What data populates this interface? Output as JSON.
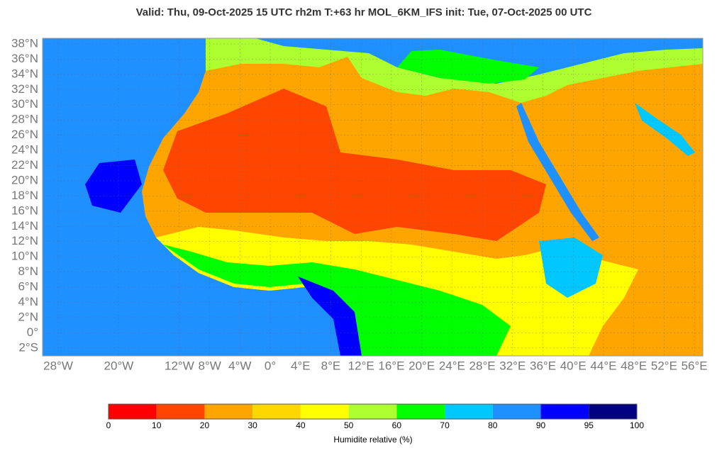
{
  "header": {
    "title": "Valid: Thu, 09-Oct-2025   15 UTC   rh2m   T:+63 hr   MOL_6KM_IFS      init: Tue, 07-Oct-2025   00 UTC"
  },
  "map": {
    "lat_ticks": [
      {
        "value": 38,
        "label": "38°N"
      },
      {
        "value": 36,
        "label": "36°N"
      },
      {
        "value": 34,
        "label": "34°N"
      },
      {
        "value": 32,
        "label": "32°N"
      },
      {
        "value": 30,
        "label": "30°N"
      },
      {
        "value": 28,
        "label": "28°N"
      },
      {
        "value": 26,
        "label": "26°N"
      },
      {
        "value": 24,
        "label": "24°N"
      },
      {
        "value": 22,
        "label": "22°N"
      },
      {
        "value": 20,
        "label": "20°N"
      },
      {
        "value": 18,
        "label": "18°N"
      },
      {
        "value": 16,
        "label": "16°N"
      },
      {
        "value": 14,
        "label": "14°N"
      },
      {
        "value": 12,
        "label": "12°N"
      },
      {
        "value": 10,
        "label": "10°N"
      },
      {
        "value": 8,
        "label": "8°N"
      },
      {
        "value": 6,
        "label": "6°N"
      },
      {
        "value": 4,
        "label": "4°N"
      },
      {
        "value": 2,
        "label": "2°N"
      },
      {
        "value": 0,
        "label": "0°"
      },
      {
        "value": -2,
        "label": "2°S"
      }
    ],
    "lon_ticks": [
      {
        "value": -28,
        "label": "28°W"
      },
      {
        "value": -20,
        "label": "20°W"
      },
      {
        "value": -12,
        "label": "12°W"
      },
      {
        "value": -8,
        "label": "8°W"
      },
      {
        "value": -4,
        "label": "4°W"
      },
      {
        "value": 0,
        "label": "0°"
      },
      {
        "value": 4,
        "label": "4°E"
      },
      {
        "value": 8,
        "label": "8°E"
      },
      {
        "value": 12,
        "label": "12°E"
      },
      {
        "value": 16,
        "label": "16°E"
      },
      {
        "value": 20,
        "label": "20°E"
      },
      {
        "value": 24,
        "label": "24°E"
      },
      {
        "value": 28,
        "label": "28°E"
      },
      {
        "value": 32,
        "label": "32°E"
      },
      {
        "value": 36,
        "label": "36°E"
      },
      {
        "value": 40,
        "label": "40°E"
      },
      {
        "value": 44,
        "label": "44°E"
      },
      {
        "value": 48,
        "label": "48°E"
      },
      {
        "value": 52,
        "label": "52°E"
      },
      {
        "value": 56,
        "label": "56°E"
      }
    ]
  },
  "colorbar": {
    "bins": [
      0,
      10,
      20,
      30,
      40,
      50,
      60,
      70,
      80,
      90,
      95,
      100
    ],
    "colors": [
      "#ff0000",
      "#ff4500",
      "#ffa500",
      "#ffd700",
      "#ffff00",
      "#adff2f",
      "#00ff00",
      "#00c8ff",
      "#1e90ff",
      "#0000ff",
      "#000080"
    ],
    "label": "Humidite relative (%)"
  }
}
